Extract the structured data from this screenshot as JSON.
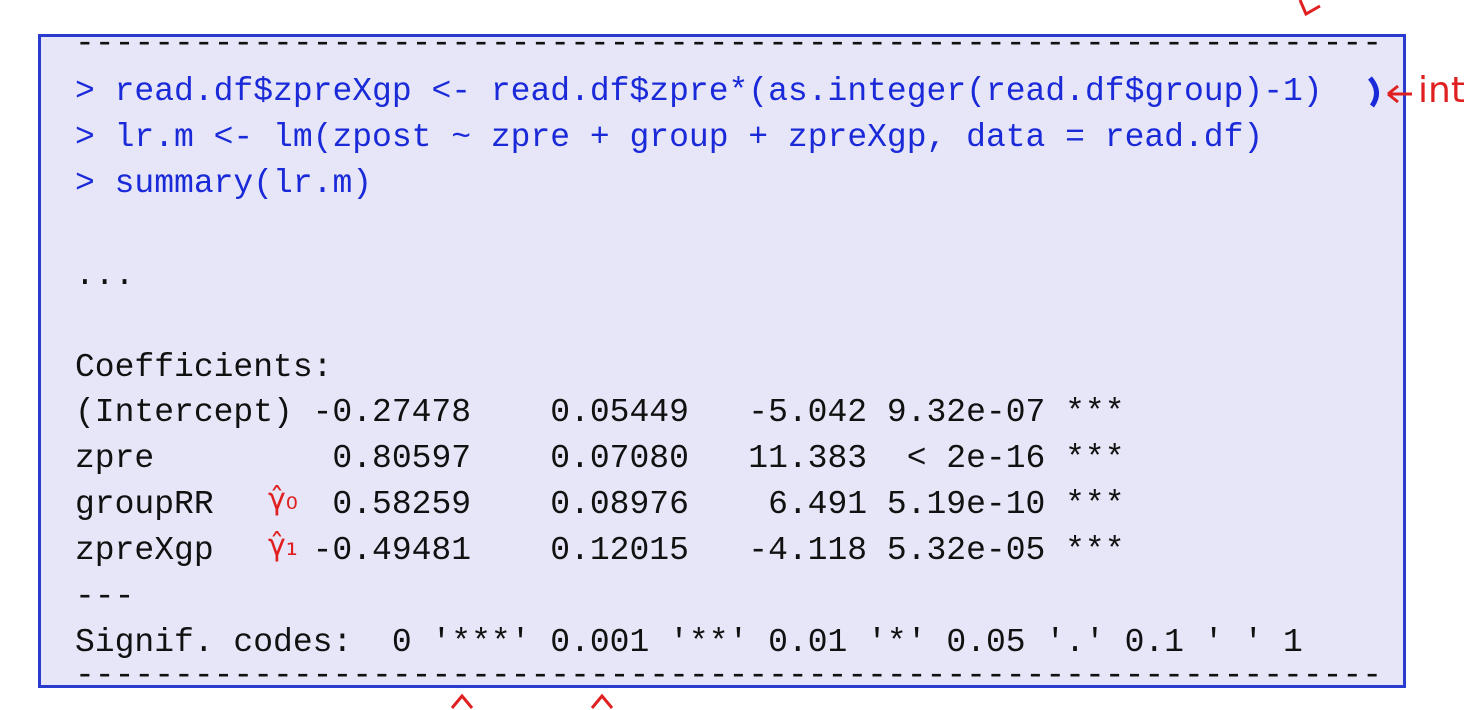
{
  "code": {
    "rule_top": "------------------------------------------------------------------",
    "commands": [
      "> read.df$zpreXgp <- read.df$zpre*(as.integer(read.df$group)-1)",
      "> lr.m <- lm(zpost ~ zpre + group + zpreXgp, data = read.df)",
      "> summary(lr.m)"
    ],
    "ellipsis": "...",
    "coefficients": {
      "heading": "Coefficients:",
      "rows": [
        [
          "(Intercept)",
          "-0.27478",
          "0.05449",
          "-5.042",
          "9.32e-07",
          "***"
        ],
        [
          "zpre",
          "0.80597",
          "0.07080",
          "11.383",
          "< 2e-16",
          "***"
        ],
        [
          "groupRR",
          "0.58259",
          "0.08976",
          "6.491",
          "5.19e-10",
          "***"
        ],
        [
          "zpreXgp",
          "-0.49481",
          "0.12015",
          "-4.118",
          "5.32e-05",
          "***"
        ]
      ]
    },
    "separator": "---",
    "signif": "Signif. codes:  0 '***' 0.001 '**' 0.01 '*' 0.05 '.' 0.1 ' ' 1",
    "rule_bottom": "------------------------------------------------------------------"
  },
  "annotations": {
    "int_note": "int",
    "gamma0": "γ̂₀",
    "gamma1": "γ̂₁"
  }
}
